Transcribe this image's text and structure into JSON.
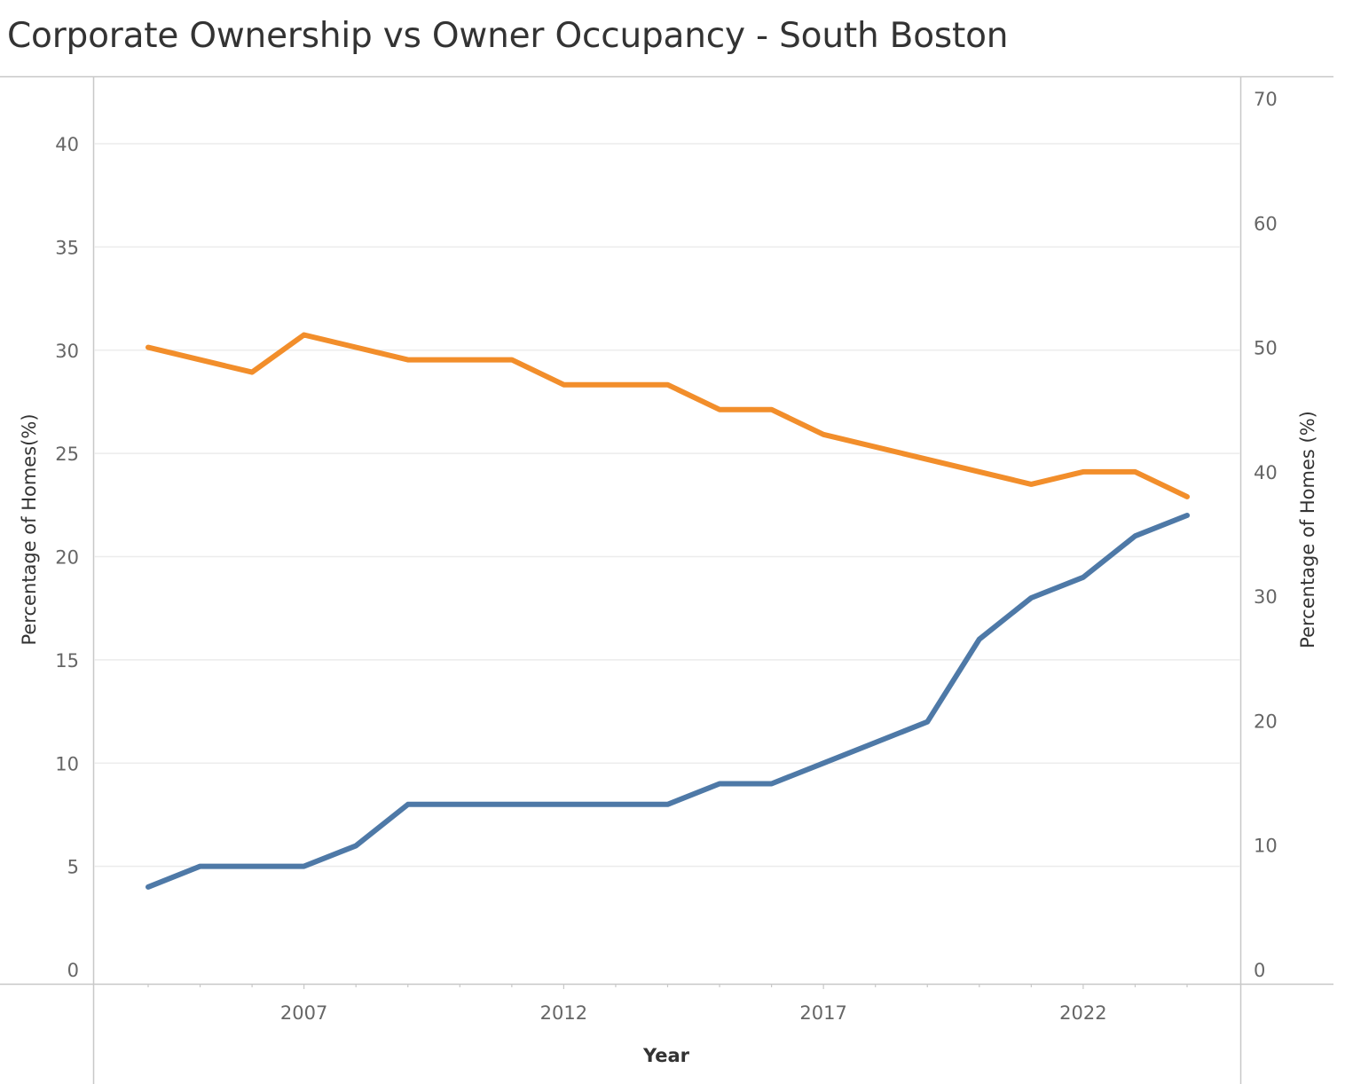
{
  "chart_data": {
    "type": "line",
    "title": "Corporate Ownership vs Owner Occupancy - South Boston",
    "xlabel": "Year",
    "ylabel_left": "Percentage of Homes(%)",
    "ylabel_right": "Percentage of Homes (%)",
    "x": [
      2004,
      2005,
      2006,
      2007,
      2008,
      2009,
      2010,
      2011,
      2012,
      2013,
      2014,
      2015,
      2016,
      2017,
      2018,
      2019,
      2020,
      2021,
      2022,
      2023,
      2024
    ],
    "x_ticks": [
      2007,
      2012,
      2017,
      2022
    ],
    "xlim": [
      2003,
      2025
    ],
    "left_axis": {
      "ylim": [
        0,
        43
      ],
      "ticks": [
        0,
        5,
        10,
        15,
        20,
        25,
        30,
        35,
        40
      ]
    },
    "right_axis": {
      "ylim": [
        0,
        70
      ],
      "ticks": [
        0,
        10,
        20,
        30,
        40,
        50,
        60,
        70
      ]
    },
    "series": [
      {
        "axis": "left",
        "color": "#4e79a7",
        "values": [
          4,
          5,
          5,
          5,
          6,
          8,
          8,
          8,
          8,
          8,
          8,
          9,
          9,
          10,
          11,
          12,
          16,
          18,
          19,
          21,
          22
        ]
      },
      {
        "axis": "right",
        "color": "#f28e2b",
        "values": [
          50,
          null,
          48,
          51,
          null,
          49,
          null,
          49,
          47,
          null,
          47,
          45,
          45,
          43,
          null,
          null,
          null,
          39,
          40,
          40,
          38
        ]
      }
    ],
    "grid": true,
    "legend": "none"
  }
}
